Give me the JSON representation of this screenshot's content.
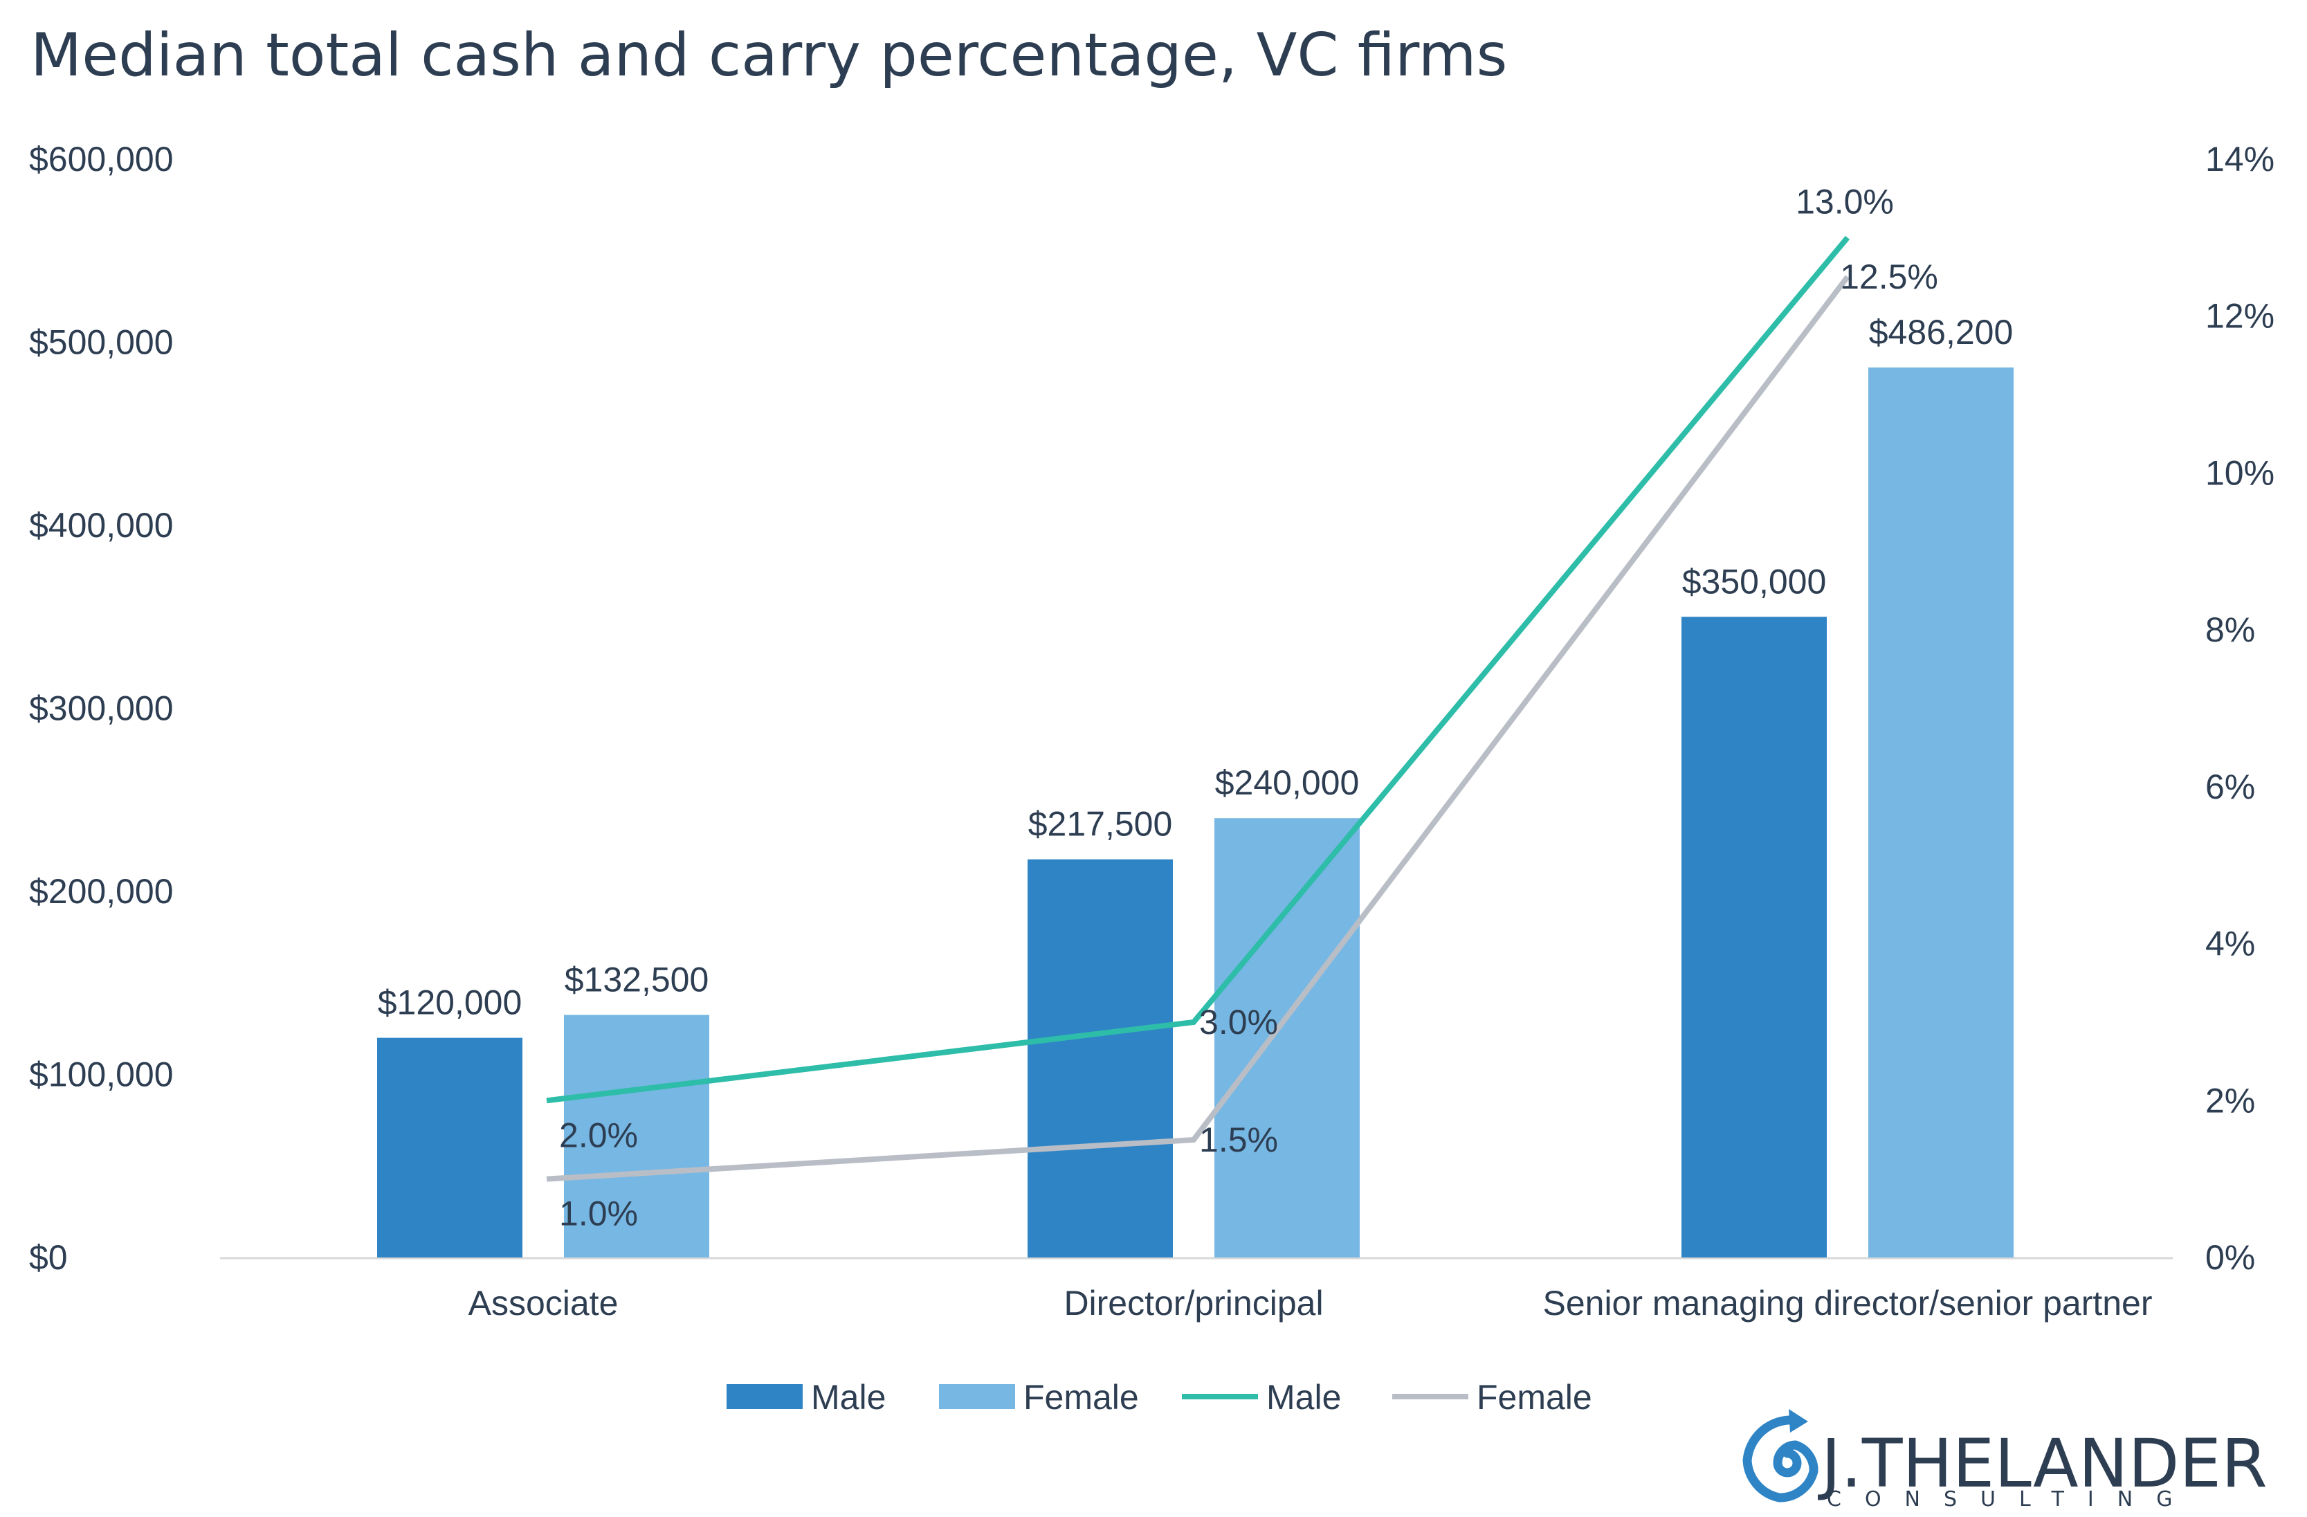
{
  "chart_data": {
    "type": "bar",
    "title": "Median total cash and carry percentage, VC firms",
    "categories": [
      "Associate",
      "Director/principal",
      "Senior managing director/senior partner"
    ],
    "bar_series": [
      {
        "name": "Male",
        "values": [
          120000,
          217500,
          350000
        ],
        "labels": [
          "$120,000",
          "$217,500",
          "$350,000"
        ],
        "color": "#2f84c6"
      },
      {
        "name": "Female",
        "values": [
          132500,
          240000,
          486200
        ],
        "labels": [
          "$132,500",
          "$240,000",
          "$486,200"
        ],
        "color": "#77b7e3"
      }
    ],
    "line_series": [
      {
        "name": "Male",
        "values": [
          2.0,
          3.0,
          13.0
        ],
        "labels": [
          "2.0%",
          "3.0%",
          "13.0%"
        ],
        "color": "#2dbda8"
      },
      {
        "name": "Female",
        "values": [
          1.0,
          1.5,
          12.5
        ],
        "labels": [
          "1.0%",
          "1.5%",
          "12.5%"
        ],
        "color": "#b9bec6"
      }
    ],
    "y_left": {
      "min": 0,
      "max": 600000,
      "ticks": [
        "$0",
        "$100,000",
        "$200,000",
        "$300,000",
        "$400,000",
        "$500,000",
        "$600,000"
      ]
    },
    "y_right": {
      "min": 0,
      "max": 14,
      "ticks": [
        "0%",
        "2%",
        "4%",
        "6%",
        "8%",
        "10%",
        "12%",
        "14%"
      ]
    },
    "legend": {
      "placement": "bottom",
      "entries": [
        "Male",
        "Female",
        "Male",
        "Female"
      ]
    },
    "grid": false
  },
  "logo": {
    "name": "J.THELANDER",
    "sub": "CONSULTING"
  }
}
